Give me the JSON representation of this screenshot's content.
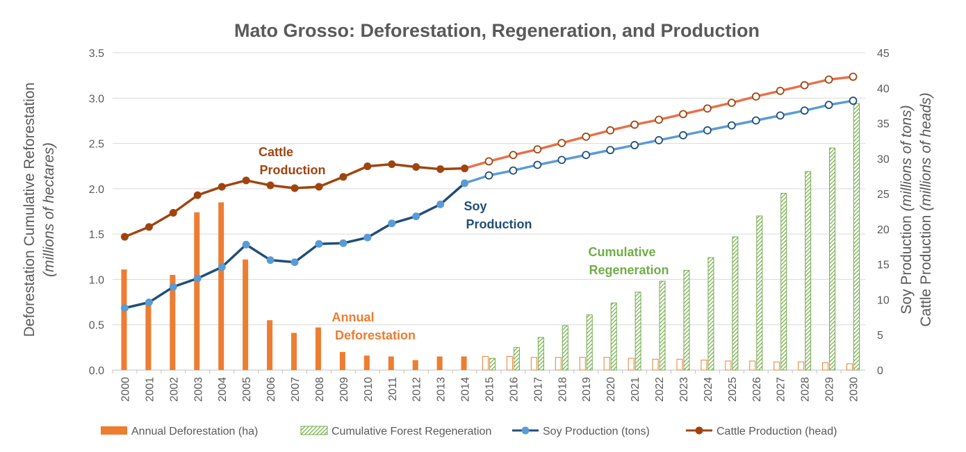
{
  "chart_data": {
    "type": "bar",
    "title": "Mato Grosso: Deforestation, Regeneration, and Production",
    "categories": [
      "2000",
      "2001",
      "2002",
      "2003",
      "2004",
      "2005",
      "2006",
      "2007",
      "2008",
      "2009",
      "2010",
      "2011",
      "2012",
      "2013",
      "2014",
      "2015",
      "2016",
      "2017",
      "2018",
      "2019",
      "2020",
      "2021",
      "2022",
      "2023",
      "2024",
      "2025",
      "2026",
      "2027",
      "2028",
      "2029",
      "2030"
    ],
    "y_left": {
      "label_main": "Deforestation Cumulative Reforestation",
      "label_unit": "(millions of hectares)",
      "ylim": [
        0,
        3.5
      ],
      "ticks": [
        "0.0",
        "0.5",
        "1.0",
        "1.5",
        "2.0",
        "2.5",
        "3.0",
        "3.5"
      ]
    },
    "y_right": {
      "label_line1_main": "Soy Production",
      "label_line1_unit": "(millions of tons)",
      "label_line2_main": "Cattle Production",
      "label_line2_unit": "(millions of heads)",
      "ylim": [
        0,
        45
      ],
      "ticks": [
        "0",
        "5",
        "10",
        "15",
        "20",
        "25",
        "30",
        "35",
        "40",
        "45"
      ]
    },
    "grid": true,
    "legend_position": "bottom",
    "colors": {
      "deforestation": "#ED7D31",
      "regeneration": "#70AD47",
      "soy_historic": "#1F4E79",
      "soy_projected": "#5B9BD5",
      "cattle_historic": "#A0440F",
      "cattle_projected": "#E8704A"
    },
    "series": [
      {
        "name": "Annual Deforestation (ha)",
        "axis": "left",
        "kind": "bar",
        "values": [
          1.11,
          0.75,
          1.05,
          1.74,
          1.85,
          1.22,
          0.55,
          0.41,
          0.47,
          0.2,
          0.16,
          0.15,
          0.11,
          0.15,
          0.15,
          0.15,
          0.15,
          0.14,
          0.14,
          0.14,
          0.14,
          0.13,
          0.12,
          0.12,
          0.11,
          0.1,
          0.1,
          0.09,
          0.09,
          0.08,
          0.07
        ],
        "projected_from_index": 15
      },
      {
        "name": "Cumulative Forest Regeneration",
        "axis": "left",
        "kind": "bar-hatched",
        "values": [
          null,
          null,
          null,
          null,
          null,
          null,
          null,
          null,
          null,
          null,
          null,
          null,
          null,
          null,
          null,
          0.13,
          0.25,
          0.36,
          0.49,
          0.61,
          0.74,
          0.86,
          0.98,
          1.1,
          1.24,
          1.47,
          1.7,
          1.95,
          2.19,
          2.45,
          2.94
        ]
      },
      {
        "name": "Soy Production (tons)",
        "axis": "right",
        "kind": "line",
        "values": [
          8.8,
          9.6,
          11.8,
          13.0,
          14.6,
          17.8,
          15.6,
          15.3,
          17.9,
          18.0,
          18.8,
          20.8,
          21.8,
          23.5,
          26.5,
          27.6,
          28.3,
          29.1,
          29.8,
          30.5,
          31.2,
          31.9,
          32.6,
          33.3,
          34.0,
          34.7,
          35.4,
          36.1,
          36.8,
          37.6,
          38.2
        ],
        "projected_from_index": 14
      },
      {
        "name": "Cattle Production (head)",
        "axis": "right",
        "kind": "line",
        "values": [
          18.9,
          20.3,
          22.3,
          24.8,
          26.0,
          26.9,
          26.2,
          25.8,
          26.0,
          27.4,
          28.9,
          29.2,
          28.8,
          28.5,
          28.6,
          29.6,
          30.5,
          31.3,
          32.2,
          33.1,
          34.0,
          34.8,
          35.5,
          36.3,
          37.1,
          37.9,
          38.8,
          39.6,
          40.4,
          41.2,
          41.6
        ],
        "projected_from_index": 14
      }
    ],
    "annotations": {
      "cattle": [
        "Cattle",
        "Production"
      ],
      "soy": [
        "Soy",
        "Production"
      ],
      "regeneration": [
        "Cumulative",
        "Regeneration"
      ],
      "deforestation": [
        "Annual",
        "Deforestation"
      ]
    }
  }
}
